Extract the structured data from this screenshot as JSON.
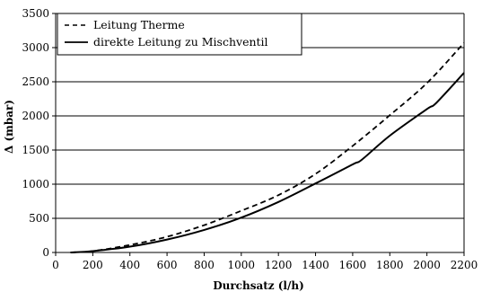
{
  "chart_data": {
    "type": "line",
    "title": "",
    "xlabel": "Durchsatz (l/h)",
    "ylabel": "Δ (mbar)",
    "xlim": [
      0,
      2200
    ],
    "ylim": [
      0,
      3500
    ],
    "x_ticks": [
      0,
      200,
      400,
      600,
      800,
      1000,
      1200,
      1400,
      1600,
      1800,
      2000,
      2200
    ],
    "y_ticks": [
      0,
      500,
      1000,
      1500,
      2000,
      2500,
      3000,
      3500
    ],
    "grid": "horizontal",
    "legend_position": "top-left",
    "series": [
      {
        "name": "Leitung Therme",
        "line_style": "dashed",
        "color": "#000000",
        "points": [
          [
            80,
            0
          ],
          [
            200,
            20
          ],
          [
            400,
            110
          ],
          [
            600,
            230
          ],
          [
            800,
            400
          ],
          [
            1000,
            610
          ],
          [
            1200,
            840
          ],
          [
            1400,
            1150
          ],
          [
            1600,
            1560
          ],
          [
            1800,
            2010
          ],
          [
            2000,
            2480
          ],
          [
            2200,
            3070
          ]
        ]
      },
      {
        "name": "direkte Leitung zu Mischventil",
        "line_style": "solid",
        "color": "#000000",
        "points": [
          [
            80,
            0
          ],
          [
            200,
            20
          ],
          [
            400,
            85
          ],
          [
            600,
            190
          ],
          [
            800,
            330
          ],
          [
            1000,
            510
          ],
          [
            1200,
            740
          ],
          [
            1400,
            1010
          ],
          [
            1600,
            1290
          ],
          [
            1650,
            1360
          ],
          [
            1800,
            1710
          ],
          [
            2000,
            2100
          ],
          [
            2050,
            2190
          ],
          [
            2200,
            2630
          ]
        ]
      }
    ]
  }
}
